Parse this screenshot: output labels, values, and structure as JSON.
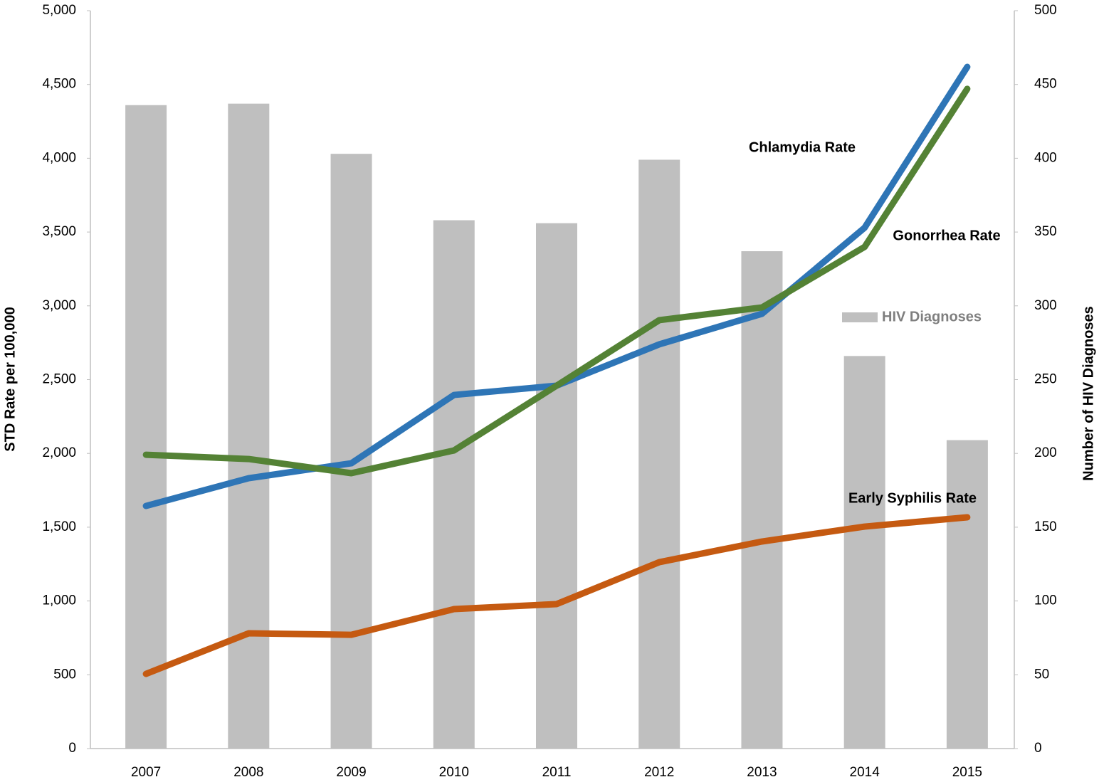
{
  "chart_data": {
    "type": "combo",
    "categories": [
      "2007",
      "2008",
      "2009",
      "2010",
      "2011",
      "2012",
      "2013",
      "2014",
      "2015"
    ],
    "ylabel": "STD Rate per 100,000",
    "y2label": "Number of HIV Diagnoses",
    "ylim": [
      0,
      5000
    ],
    "yticks": [
      0,
      500,
      {
        "value": 1000,
        "label": "1,000"
      },
      {
        "value": 1500,
        "label": "1,500"
      },
      {
        "value": 2000,
        "label": "2,000"
      },
      {
        "value": 2500,
        "label": "2,500"
      },
      {
        "value": 3000,
        "label": "3,000"
      },
      {
        "value": 3500,
        "label": "3,500"
      },
      {
        "value": 4000,
        "label": "4,000"
      },
      {
        "value": 4500,
        "label": "4,500"
      },
      {
        "value": 5000,
        "label": "5,000"
      }
    ],
    "y2lim": [
      0,
      500
    ],
    "y2ticks": [
      0,
      50,
      100,
      150,
      200,
      250,
      300,
      350,
      400,
      450,
      500
    ],
    "series": [
      {
        "name": "HIV Diagnoses",
        "type": "bar",
        "axis": "y2",
        "color": "#bfbfbf",
        "values": [
          436,
          437,
          403,
          358,
          356,
          399,
          337,
          266,
          209
        ]
      },
      {
        "name": "Chlamydia Rate",
        "type": "line",
        "color": "#2e75b6",
        "values": [
          1644,
          1832,
          1933,
          2396,
          2459,
          2739,
          2946,
          3529,
          4619
        ]
      },
      {
        "name": "Gonorrhea Rate",
        "type": "line",
        "color": "#548235",
        "values": [
          1991,
          1962,
          1866,
          2020,
          2459,
          2903,
          2989,
          3399,
          4470
        ]
      },
      {
        "name": "Early Syphilis Rate",
        "type": "line",
        "color": "#c55a11",
        "values": [
          506,
          781,
          771,
          945,
          979,
          1263,
          1403,
          1504,
          1567
        ]
      }
    ],
    "legend": "inside-right"
  }
}
